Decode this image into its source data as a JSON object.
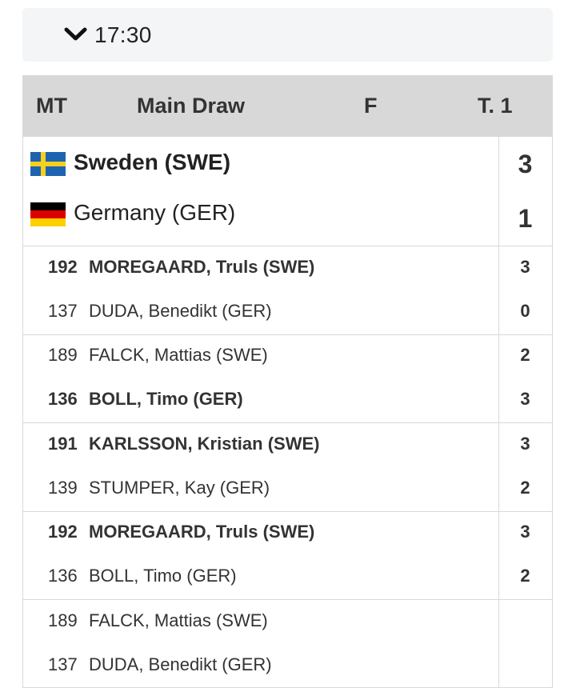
{
  "header": {
    "time": "17:30"
  },
  "table_head": {
    "mt": "MT",
    "round": "Main Draw",
    "stage": "F",
    "table": "T. 1"
  },
  "teams": [
    {
      "name": "Sweden (SWE)",
      "score": "3",
      "winner": true,
      "flag": "sweden-flag-icon"
    },
    {
      "name": "Germany (GER)",
      "score": "1",
      "winner": false,
      "flag": "germany-flag-icon"
    }
  ],
  "matches": [
    {
      "players": [
        {
          "number": "192",
          "name": "MOREGAARD, Truls (SWE)",
          "score": "3",
          "winner": true
        },
        {
          "number": "137",
          "name": "DUDA, Benedikt (GER)",
          "score": "0",
          "winner": false
        }
      ]
    },
    {
      "players": [
        {
          "number": "189",
          "name": "FALCK, Mattias (SWE)",
          "score": "2",
          "winner": false
        },
        {
          "number": "136",
          "name": "BOLL, Timo (GER)",
          "score": "3",
          "winner": true
        }
      ]
    },
    {
      "players": [
        {
          "number": "191",
          "name": "KARLSSON, Kristian (SWE)",
          "score": "3",
          "winner": true
        },
        {
          "number": "139",
          "name": "STUMPER, Kay (GER)",
          "score": "2",
          "winner": false
        }
      ]
    },
    {
      "players": [
        {
          "number": "192",
          "name": "MOREGAARD, Truls (SWE)",
          "score": "3",
          "winner": true
        },
        {
          "number": "136",
          "name": "BOLL, Timo (GER)",
          "score": "2",
          "winner": false
        }
      ]
    },
    {
      "players": [
        {
          "number": "189",
          "name": "FALCK, Mattias (SWE)",
          "score": "",
          "winner": false
        },
        {
          "number": "137",
          "name": "DUDA, Benedikt (GER)",
          "score": "",
          "winner": false
        }
      ]
    }
  ]
}
